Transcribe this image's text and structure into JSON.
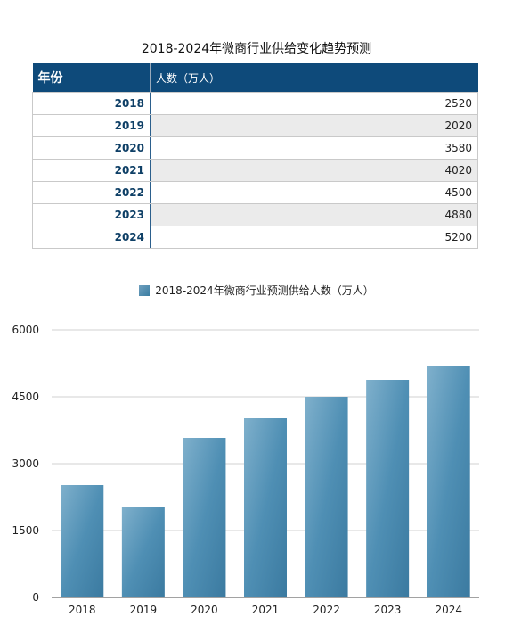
{
  "table": {
    "title": "2018-2024年微商行业供给变化趋势预测",
    "header_year": "年份",
    "header_value": "人数（万人）",
    "rows": [
      {
        "year": "2018",
        "value": "2520"
      },
      {
        "year": "2019",
        "value": "2020"
      },
      {
        "year": "2020",
        "value": "3580"
      },
      {
        "year": "2021",
        "value": "4020"
      },
      {
        "year": "2022",
        "value": "4500"
      },
      {
        "year": "2023",
        "value": "4880"
      },
      {
        "year": "2024",
        "value": "5200"
      }
    ]
  },
  "chart_data": {
    "type": "bar",
    "categories": [
      "2018",
      "2019",
      "2020",
      "2021",
      "2022",
      "2023",
      "2024"
    ],
    "series": [
      {
        "name": "2018-2024年微商行业预测供给人数（万人）",
        "values": [
          2520,
          2020,
          3580,
          4020,
          4500,
          4880,
          5200
        ]
      }
    ],
    "ylim": [
      0,
      6000
    ],
    "yticks": [
      "0",
      "1500",
      "3000",
      "4500",
      "6000"
    ],
    "grid": true,
    "legend_position": "top-center",
    "bar_color": "#4a8ab0"
  }
}
